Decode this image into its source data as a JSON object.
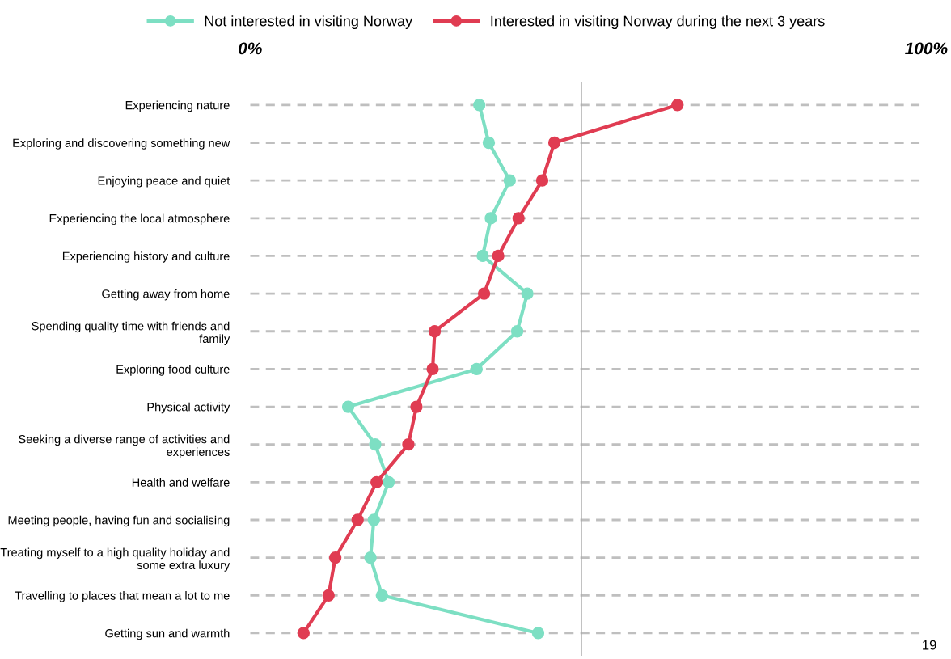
{
  "chart_data": {
    "type": "line",
    "orientation": "horizontal",
    "categories": [
      "Experiencing nature",
      "Exploring and discovering something new",
      "Enjoying peace and quiet",
      "Experiencing the local atmosphere",
      "Experiencing history and culture",
      "Getting away from home",
      "Spending quality time with friends and family",
      "Exploring food culture",
      "Physical activity",
      "Seeking a diverse range of activities and experiences",
      "Health and welfare",
      "Meeting people, having fun and socialising",
      "Treating myself to a high quality holiday and some extra luxury",
      "Travelling to places that mean a lot to me",
      "Getting sun and warmth"
    ],
    "series": [
      {
        "name": "Not interested in visiting Norway",
        "color": "#7ddfc3",
        "values": [
          33.9,
          35.3,
          38.4,
          35.6,
          34.4,
          41.0,
          39.5,
          33.5,
          14.5,
          18.5,
          20.5,
          18.3,
          17.8,
          19.5,
          42.6
        ]
      },
      {
        "name": "Interested in visiting Norway during the next 3 years",
        "color": "#e03c52",
        "values": [
          63.2,
          45.0,
          43.2,
          39.7,
          36.7,
          34.6,
          27.3,
          27.0,
          24.6,
          23.4,
          18.7,
          15.9,
          12.6,
          11.6,
          7.9
        ]
      }
    ],
    "xlim": [
      0,
      100
    ],
    "xticks": [
      {
        "value": 0,
        "label": "0%"
      },
      {
        "value": 100,
        "label": "100%"
      }
    ],
    "ref_lines": [
      {
        "axis": "x",
        "value": 49,
        "label": null,
        "color": "#a6a6a6"
      }
    ],
    "grid": "y",
    "legend": "top",
    "marker": "circle",
    "line_style": "solid",
    "annotations": [
      "19"
    ]
  }
}
